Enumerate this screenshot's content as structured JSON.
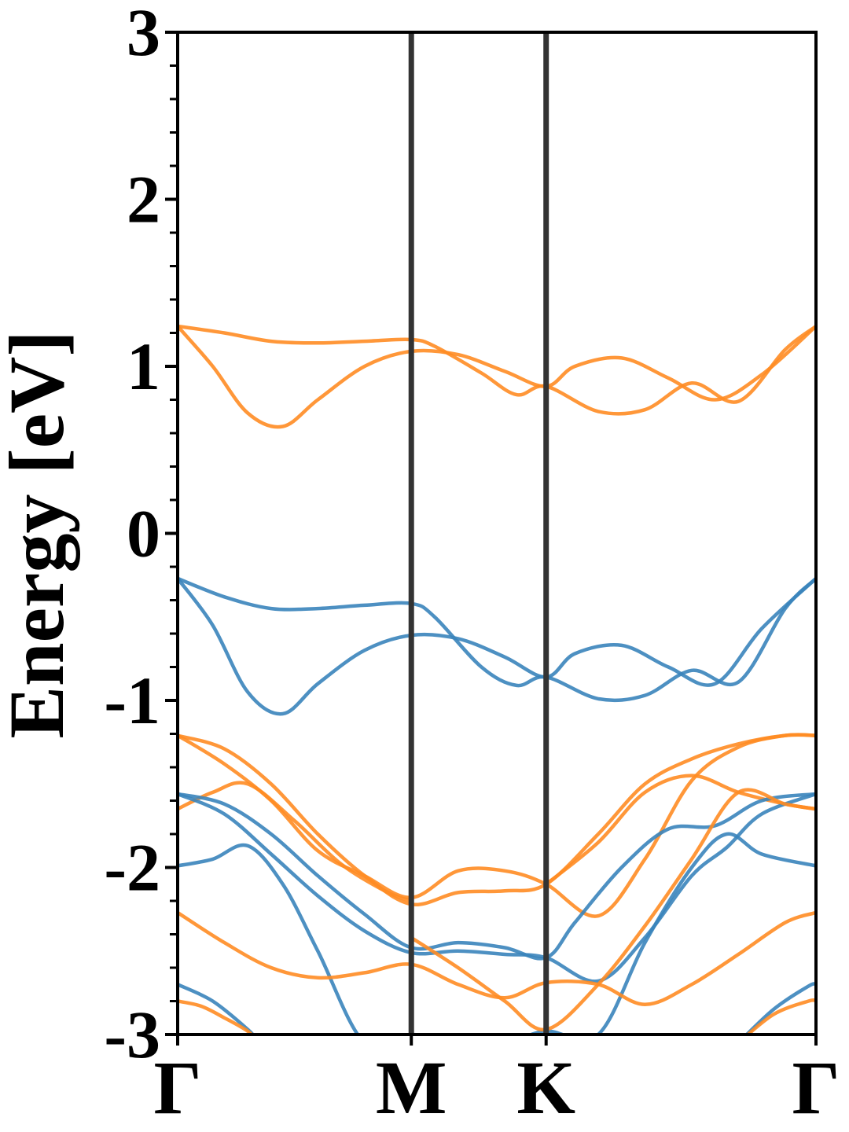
{
  "chart_data": {
    "type": "line",
    "title": "",
    "xlabel": "",
    "ylabel": "Energy [eV]",
    "ylim": [
      -3,
      3
    ],
    "yticks": [
      "3",
      "2",
      "1",
      "0",
      "-1",
      "-2",
      "-3"
    ],
    "ytick_values": [
      3,
      2,
      1,
      0,
      -1,
      -2,
      -3
    ],
    "x_kpoints": [
      {
        "label": "Γ",
        "value": 0.0
      },
      {
        "label": "M",
        "value": 1.0
      },
      {
        "label": "K",
        "value": 1.577
      },
      {
        "label": "Γ",
        "value": 2.732
      }
    ],
    "xlim": [
      0,
      2.732
    ],
    "grid": false,
    "legend": "none",
    "colors": {
      "blue": "#3a84bb",
      "orange": "#ff8c24",
      "kline": "#333333"
    },
    "series": [
      {
        "color": "orange",
        "x": [
          0,
          0.2,
          0.4,
          0.6,
          0.8,
          1.0,
          1.1,
          1.3,
          1.45,
          1.577,
          1.8,
          2.0,
          2.2,
          2.4,
          2.6,
          2.732
        ],
        "values": [
          1.24,
          1.2,
          1.15,
          1.14,
          1.15,
          1.16,
          1.12,
          0.96,
          0.83,
          0.88,
          0.73,
          0.74,
          0.9,
          0.79,
          1.1,
          1.24
        ]
      },
      {
        "color": "orange",
        "x": [
          0,
          0.15,
          0.3,
          0.45,
          0.6,
          0.8,
          1.0,
          1.2,
          1.4,
          1.577,
          1.7,
          1.9,
          2.1,
          2.3,
          2.5,
          2.732
        ],
        "values": [
          1.24,
          1.0,
          0.72,
          0.64,
          0.8,
          1.0,
          1.09,
          1.07,
          0.97,
          0.88,
          1.0,
          1.05,
          0.93,
          0.8,
          0.95,
          1.24
        ]
      },
      {
        "color": "blue",
        "x": [
          0,
          0.2,
          0.4,
          0.6,
          0.8,
          1.0,
          1.1,
          1.3,
          1.45,
          1.577,
          1.8,
          2.0,
          2.2,
          2.4,
          2.6,
          2.732
        ],
        "values": [
          -0.27,
          -0.38,
          -0.45,
          -0.45,
          -0.43,
          -0.42,
          -0.5,
          -0.8,
          -0.91,
          -0.86,
          -0.99,
          -0.97,
          -0.82,
          -0.89,
          -0.45,
          -0.27
        ]
      },
      {
        "color": "blue",
        "x": [
          0,
          0.15,
          0.3,
          0.45,
          0.6,
          0.8,
          1.0,
          1.2,
          1.4,
          1.577,
          1.7,
          1.9,
          2.1,
          2.3,
          2.5,
          2.732
        ],
        "values": [
          -0.27,
          -0.55,
          -0.95,
          -1.08,
          -0.9,
          -0.7,
          -0.61,
          -0.63,
          -0.74,
          -0.86,
          -0.72,
          -0.67,
          -0.8,
          -0.9,
          -0.57,
          -0.27
        ]
      },
      {
        "color": "orange",
        "x": [
          0,
          0.2,
          0.4,
          0.6,
          0.8,
          1.0,
          1.2,
          1.4,
          1.577,
          1.8,
          2.0,
          2.2,
          2.4,
          2.6,
          2.732
        ],
        "values": [
          -1.21,
          -1.29,
          -1.5,
          -1.8,
          -2.05,
          -2.22,
          -2.15,
          -2.14,
          -2.1,
          -1.8,
          -1.5,
          -1.35,
          -1.26,
          -1.21,
          -1.21
        ]
      },
      {
        "color": "orange",
        "x": [
          0,
          0.2,
          0.4,
          0.6,
          0.8,
          1.0,
          1.2,
          1.4,
          1.577,
          1.8,
          2.0,
          2.2,
          2.4,
          2.6,
          2.732
        ],
        "values": [
          -1.21,
          -1.38,
          -1.6,
          -1.9,
          -2.05,
          -2.18,
          -2.02,
          -2.02,
          -2.1,
          -2.29,
          -1.95,
          -1.48,
          -1.28,
          -1.21,
          -1.21
        ]
      },
      {
        "color": "orange",
        "x": [
          0,
          0.15,
          0.3,
          0.5,
          0.7,
          0.9,
          1.0
        ],
        "values": [
          -1.65,
          -1.55,
          -1.5,
          -1.72,
          -1.98,
          -2.15,
          -2.2
        ]
      },
      {
        "color": "orange",
        "x": [
          1.577,
          1.8,
          2.0,
          2.2,
          2.4,
          2.6,
          2.732
        ],
        "values": [
          -2.1,
          -1.85,
          -1.55,
          -1.45,
          -1.55,
          -1.62,
          -1.65
        ]
      },
      {
        "color": "blue",
        "x": [
          0,
          0.2,
          0.4,
          0.6,
          0.8,
          1.0,
          1.2,
          1.4,
          1.577,
          1.7,
          1.9,
          2.1,
          2.3,
          2.5,
          2.732
        ],
        "values": [
          -1.56,
          -1.62,
          -1.8,
          -2.05,
          -2.28,
          -2.48,
          -2.45,
          -2.48,
          -2.54,
          -2.33,
          -2.0,
          -1.77,
          -1.75,
          -1.6,
          -1.56
        ]
      },
      {
        "color": "blue",
        "x": [
          0,
          0.2,
          0.4,
          0.6,
          0.8,
          1.0,
          1.2,
          1.4,
          1.577,
          1.8,
          2.0,
          2.2,
          2.35,
          2.5,
          2.732
        ],
        "values": [
          -1.56,
          -1.68,
          -1.92,
          -2.17,
          -2.38,
          -2.51,
          -2.5,
          -2.52,
          -2.54,
          -2.68,
          -2.42,
          -2.05,
          -1.88,
          -1.68,
          -1.56
        ]
      },
      {
        "color": "blue",
        "x": [
          0,
          0.15,
          0.3,
          0.45,
          0.6,
          0.8,
          1.0,
          1.2,
          1.4,
          1.577,
          1.8,
          2.0,
          2.2,
          2.35,
          2.5,
          2.732
        ],
        "values": [
          -1.99,
          -1.95,
          -1.87,
          -2.1,
          -2.5,
          -3.05,
          -3.0,
          -3.05,
          -3.05,
          -2.98,
          -3.0,
          -2.45,
          -2.0,
          -1.8,
          -1.92,
          -1.99
        ]
      },
      {
        "color": "orange",
        "x": [
          0,
          0.2,
          0.4,
          0.6,
          0.8,
          1.0,
          1.2,
          1.4,
          1.577,
          1.8,
          2.0,
          2.2,
          2.4,
          2.6,
          2.732
        ],
        "values": [
          -2.27,
          -2.45,
          -2.6,
          -2.66,
          -2.63,
          -2.58,
          -2.7,
          -2.78,
          -2.69,
          -2.7,
          -2.82,
          -2.7,
          -2.52,
          -2.33,
          -2.27
        ]
      },
      {
        "color": "orange",
        "x": [
          1.0,
          1.2,
          1.4,
          1.577,
          1.8,
          2.0,
          2.2,
          2.4,
          2.6,
          2.732
        ],
        "values": [
          -2.42,
          -2.6,
          -2.8,
          -2.97,
          -2.7,
          -2.35,
          -1.95,
          -1.55,
          -1.62,
          -1.65
        ]
      },
      {
        "color": "blue",
        "x": [
          0,
          0.15,
          0.3,
          0.35
        ],
        "values": [
          -2.7,
          -2.8,
          -2.97,
          -3.05
        ]
      },
      {
        "color": "blue",
        "x": [
          2.4,
          2.55,
          2.7,
          2.732
        ],
        "values": [
          -3.05,
          -2.85,
          -2.71,
          -2.7
        ]
      },
      {
        "color": "orange",
        "x": [
          0,
          0.1,
          0.2,
          0.3,
          0.35
        ],
        "values": [
          -2.8,
          -2.83,
          -2.9,
          -2.98,
          -3.05
        ]
      },
      {
        "color": "orange",
        "x": [
          2.4,
          2.55,
          2.7,
          2.732
        ],
        "values": [
          -3.05,
          -2.88,
          -2.8,
          -2.8
        ]
      }
    ]
  }
}
